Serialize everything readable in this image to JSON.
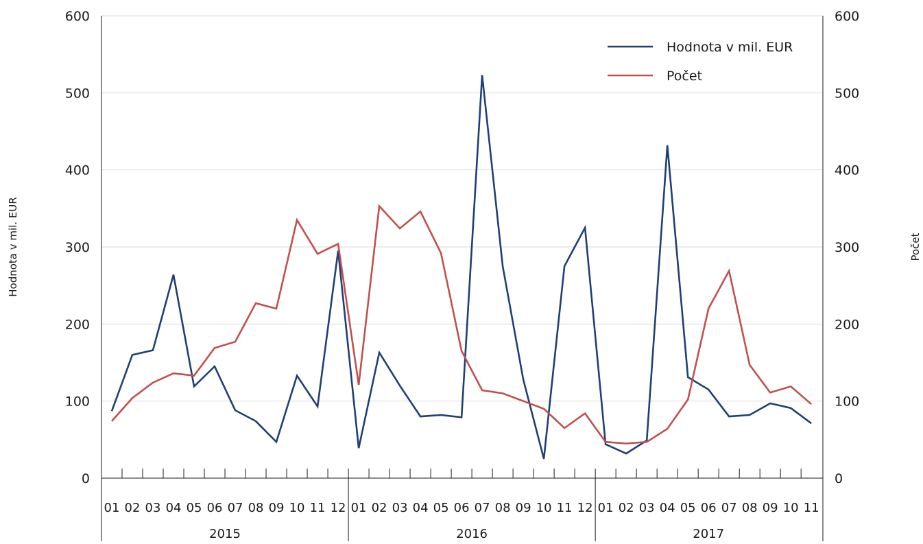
{
  "chart_data": {
    "type": "line",
    "xlabel": "",
    "ylabel": "Hodnota v mil. EUR",
    "y2label": "Počet",
    "ylim": [
      0,
      600
    ],
    "y2lim": [
      0,
      600
    ],
    "yticks": [
      "0",
      "100",
      "200",
      "300",
      "400",
      "500",
      "600"
    ],
    "y2ticks": [
      "0",
      "100",
      "200",
      "300",
      "400",
      "500",
      "600"
    ],
    "grid": "horizontal",
    "legend_position": "top-right",
    "years": [
      {
        "label": "2015",
        "months": 12
      },
      {
        "label": "2016",
        "months": 12
      },
      {
        "label": "2017",
        "months": 11
      }
    ],
    "categories": [
      "01",
      "02",
      "03",
      "04",
      "05",
      "06",
      "07",
      "08",
      "09",
      "10",
      "11",
      "12",
      "01",
      "02",
      "03",
      "04",
      "05",
      "06",
      "07",
      "08",
      "09",
      "10",
      "11",
      "12",
      "01",
      "02",
      "03",
      "04",
      "05",
      "06",
      "07",
      "08",
      "09",
      "10",
      "11"
    ],
    "series": [
      {
        "name": "Hodnota v mil. EUR",
        "axis": "left",
        "color": "#1f3f75",
        "values": [
          87,
          160,
          166,
          264,
          119,
          145,
          88,
          74,
          47,
          133,
          93,
          295,
          39,
          163,
          120,
          80,
          82,
          79,
          523,
          275,
          128,
          25,
          275,
          325,
          44,
          32,
          49,
          432,
          131,
          115,
          80,
          82,
          97,
          91,
          71
        ]
      },
      {
        "name": "Počet",
        "axis": "right",
        "color": "#c0504d",
        "values": [
          74,
          104,
          124,
          136,
          133,
          169,
          177,
          227,
          220,
          335,
          291,
          304,
          121,
          353,
          324,
          346,
          292,
          165,
          114,
          110,
          100,
          90,
          65,
          84,
          47,
          45,
          47,
          64,
          102,
          220,
          269,
          147,
          111,
          119,
          96
        ]
      }
    ]
  }
}
